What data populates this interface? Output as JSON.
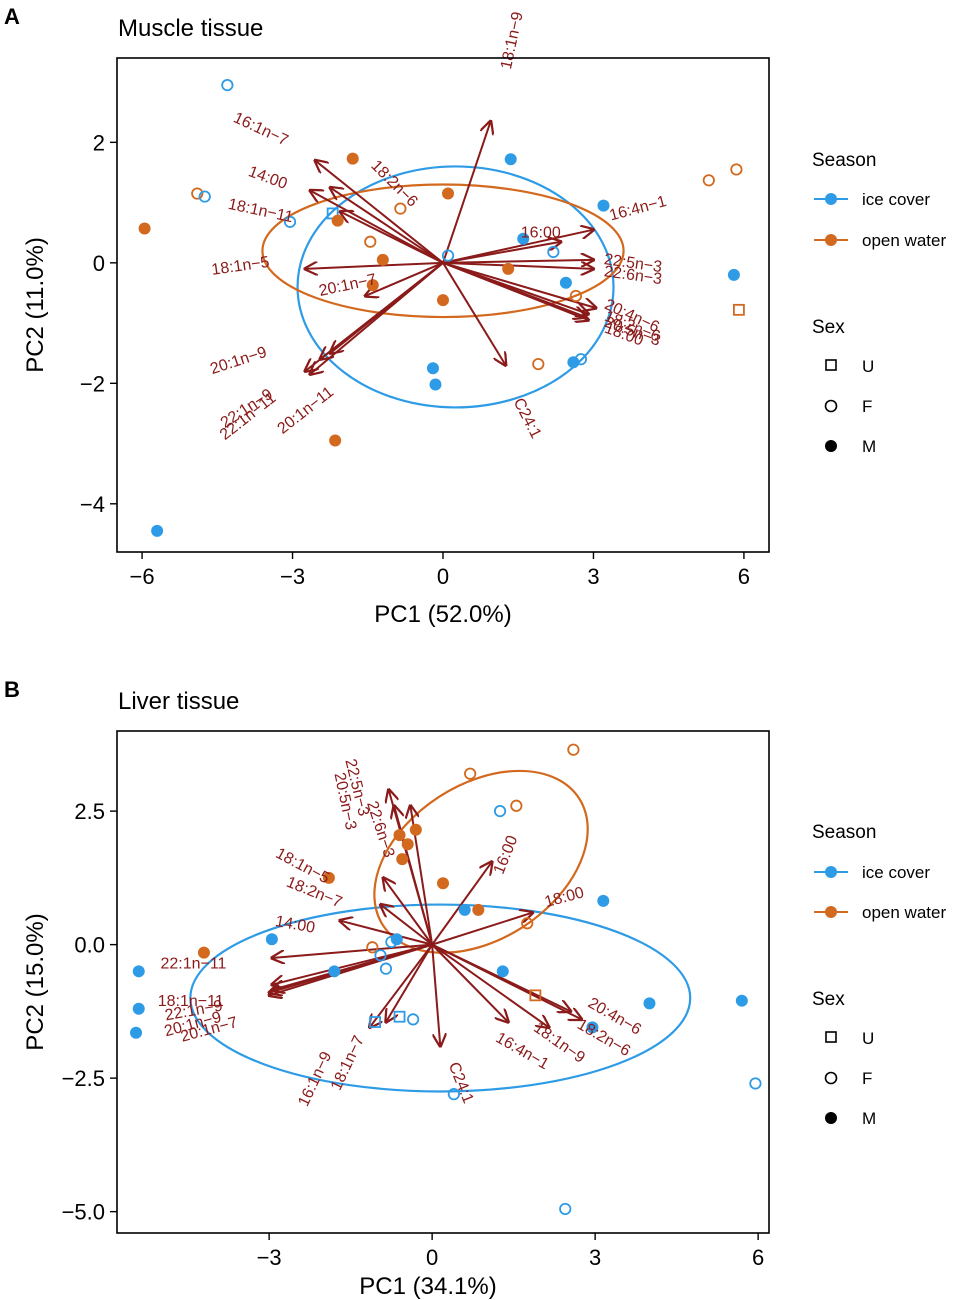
{
  "figure": {
    "panels": [
      {
        "letter": "A",
        "title": "Muscle tissue"
      },
      {
        "letter": "B",
        "title": "Liver tissue"
      }
    ]
  },
  "legend": {
    "season_title": "Season",
    "season_items": [
      {
        "label": "ice cover",
        "color": "#2E9BE6"
      },
      {
        "label": "open water",
        "color": "#D2691E"
      }
    ],
    "sex_title": "Sex",
    "sex_items": [
      {
        "label": "U",
        "shape": "square-open"
      },
      {
        "label": "F",
        "shape": "circle-open"
      },
      {
        "label": "M",
        "shape": "circle-filled"
      }
    ]
  },
  "chart_data": [
    {
      "type": "scatter",
      "title": "Muscle tissue",
      "xlabel": "PC1 (52.0%)",
      "ylabel": "PC2 (11.0%)",
      "xlim": [
        -6.5,
        6.5
      ],
      "ylim": [
        -4.8,
        3.4
      ],
      "xticks": [
        -6,
        -3,
        0,
        3,
        6
      ],
      "xtick_labels": [
        "−6",
        "−3",
        "0",
        "3",
        "6"
      ],
      "yticks": [
        -4,
        -2,
        0,
        2
      ],
      "ytick_labels": [
        "−4",
        "−2",
        "0",
        "2"
      ],
      "grid": false,
      "points": [
        {
          "x": -4.3,
          "y": 2.95,
          "season": "ice cover",
          "sex": "F"
        },
        {
          "x": -4.9,
          "y": 1.15,
          "season": "open water",
          "sex": "F"
        },
        {
          "x": -4.75,
          "y": 1.1,
          "season": "ice cover",
          "sex": "F"
        },
        {
          "x": -5.95,
          "y": 0.57,
          "season": "open water",
          "sex": "M"
        },
        {
          "x": -3.05,
          "y": 0.68,
          "season": "ice cover",
          "sex": "F"
        },
        {
          "x": -2.2,
          "y": 0.82,
          "season": "ice cover",
          "sex": "U"
        },
        {
          "x": -2.1,
          "y": 0.7,
          "season": "open water",
          "sex": "M"
        },
        {
          "x": -1.8,
          "y": 1.73,
          "season": "open water",
          "sex": "M"
        },
        {
          "x": -0.85,
          "y": 0.9,
          "season": "open water",
          "sex": "F"
        },
        {
          "x": 0.1,
          "y": 1.15,
          "season": "open water",
          "sex": "M"
        },
        {
          "x": -1.45,
          "y": 0.35,
          "season": "open water",
          "sex": "F"
        },
        {
          "x": -1.2,
          "y": 0.05,
          "season": "open water",
          "sex": "M"
        },
        {
          "x": -1.4,
          "y": -0.37,
          "season": "open water",
          "sex": "M"
        },
        {
          "x": 0.1,
          "y": 0.12,
          "season": "ice cover",
          "sex": "F"
        },
        {
          "x": 0.0,
          "y": -0.62,
          "season": "open water",
          "sex": "M"
        },
        {
          "x": 1.3,
          "y": -0.1,
          "season": "open water",
          "sex": "M"
        },
        {
          "x": 1.35,
          "y": 1.72,
          "season": "ice cover",
          "sex": "M"
        },
        {
          "x": 1.6,
          "y": 0.4,
          "season": "ice cover",
          "sex": "M"
        },
        {
          "x": 2.2,
          "y": 0.18,
          "season": "ice cover",
          "sex": "F"
        },
        {
          "x": 3.2,
          "y": 0.95,
          "season": "ice cover",
          "sex": "M"
        },
        {
          "x": 2.45,
          "y": -0.33,
          "season": "ice cover",
          "sex": "M"
        },
        {
          "x": 2.65,
          "y": -0.55,
          "season": "open water",
          "sex": "F"
        },
        {
          "x": 1.9,
          "y": -1.68,
          "season": "open water",
          "sex": "F"
        },
        {
          "x": 2.6,
          "y": -1.65,
          "season": "ice cover",
          "sex": "M"
        },
        {
          "x": 2.75,
          "y": -1.6,
          "season": "ice cover",
          "sex": "F"
        },
        {
          "x": -0.2,
          "y": -1.75,
          "season": "ice cover",
          "sex": "M"
        },
        {
          "x": -0.15,
          "y": -2.02,
          "season": "ice cover",
          "sex": "M"
        },
        {
          "x": -2.15,
          "y": -2.95,
          "season": "open water",
          "sex": "M"
        },
        {
          "x": -5.7,
          "y": -4.45,
          "season": "ice cover",
          "sex": "M"
        },
        {
          "x": 5.3,
          "y": 1.37,
          "season": "open water",
          "sex": "F"
        },
        {
          "x": 5.85,
          "y": 1.55,
          "season": "open water",
          "sex": "F"
        },
        {
          "x": 5.8,
          "y": -0.2,
          "season": "ice cover",
          "sex": "M"
        },
        {
          "x": 5.9,
          "y": -0.78,
          "season": "open water",
          "sex": "U"
        }
      ],
      "ellipses": [
        {
          "season": "ice cover",
          "cx": 0.25,
          "cy": -0.4,
          "rx": 3.15,
          "ry": 2.0
        },
        {
          "season": "open water",
          "cx": 0.0,
          "cy": 0.2,
          "rx": 3.6,
          "ry": 1.1
        }
      ],
      "loadings": [
        {
          "label": "18:1n−9",
          "x": 0.95,
          "y": 2.35,
          "lx": 1.35,
          "ly": 3.2,
          "rot": -78
        },
        {
          "label": "16:1n−7",
          "x": -2.55,
          "y": 1.7,
          "lx": -4.2,
          "ly": 2.35,
          "rot": 25
        },
        {
          "label": "14:00",
          "x": -2.65,
          "y": 1.2,
          "lx": -3.9,
          "ly": 1.45,
          "rot": 20
        },
        {
          "label": "18:2n−6",
          "x": -2.25,
          "y": 1.25,
          "lx": -1.45,
          "ly": 1.6,
          "rot": 45
        },
        {
          "label": "18:1n−11",
          "x": -2.05,
          "y": 0.85,
          "lx": -4.3,
          "ly": 0.9,
          "rot": 12
        },
        {
          "label": "18:1n−5",
          "x": -2.75,
          "y": -0.1,
          "lx": -4.6,
          "ly": -0.2,
          "rot": -8
        },
        {
          "label": "20:1n−7",
          "x": -1.55,
          "y": -0.55,
          "lx": -2.45,
          "ly": -0.55,
          "rot": -12
        },
        {
          "label": "20:1n−9",
          "x": -2.75,
          "y": -1.8,
          "lx": -4.6,
          "ly": -1.85,
          "rot": -18
        },
        {
          "label": "22:1n−9",
          "x": -2.65,
          "y": -1.85,
          "lx": -4.35,
          "ly": -2.75,
          "rot": -33
        },
        {
          "label": "22:1n−11",
          "x": -2.45,
          "y": -1.6,
          "lx": -4.35,
          "ly": -2.95,
          "rot": -38
        },
        {
          "label": "20:1n−11",
          "x": -2.25,
          "y": -1.5,
          "lx": -3.2,
          "ly": -2.85,
          "rot": -38
        },
        {
          "label": "C24:1",
          "x": 1.25,
          "y": -1.7,
          "lx": 1.4,
          "ly": -2.3,
          "rot": 63
        },
        {
          "label": "16:00",
          "x": 2.35,
          "y": 0.35,
          "lx": 1.55,
          "ly": 0.42,
          "rot": 0
        },
        {
          "label": "16:4n−1",
          "x": 3.0,
          "y": 0.55,
          "lx": 3.35,
          "ly": 0.7,
          "rot": -15
        },
        {
          "label": "22:5n−3",
          "x": 3.0,
          "y": 0.05,
          "lx": 3.2,
          "ly": -0.02,
          "rot": 8
        },
        {
          "label": "22:6n−3",
          "x": 3.0,
          "y": -0.1,
          "lx": 3.2,
          "ly": -0.22,
          "rot": 8
        },
        {
          "label": "20:4n−6",
          "x": 3.05,
          "y": -0.75,
          "lx": 3.2,
          "ly": -0.75,
          "rot": 25
        },
        {
          "label": "18:2n−6",
          "x": 2.9,
          "y": -0.85,
          "lx": 3.2,
          "ly": -0.95,
          "rot": 22
        },
        {
          "label": "20:5n−3",
          "x": 2.85,
          "y": -0.9,
          "lx": 3.2,
          "ly": -1.05,
          "rot": 20
        },
        {
          "label": "18:00",
          "x": 2.9,
          "y": -0.95,
          "lx": 3.2,
          "ly": -1.15,
          "rot": 20
        }
      ]
    },
    {
      "type": "scatter",
      "title": "Liver tissue",
      "xlabel": "PC1 (34.1%)",
      "ylabel": "PC2 (15.0%)",
      "xlim": [
        -5.8,
        6.2
      ],
      "ylim": [
        -5.4,
        4.0
      ],
      "xticks": [
        -3,
        0,
        3,
        6
      ],
      "xtick_labels": [
        "−3",
        "0",
        "3",
        "6"
      ],
      "yticks": [
        -5.0,
        -2.5,
        0.0,
        2.5
      ],
      "ytick_labels": [
        "−5.0",
        "−2.5",
        "0.0",
        "2.5"
      ],
      "grid": false,
      "points": [
        {
          "x": 2.6,
          "y": 3.65,
          "season": "open water",
          "sex": "F"
        },
        {
          "x": 0.7,
          "y": 3.2,
          "season": "open water",
          "sex": "F"
        },
        {
          "x": 1.55,
          "y": 2.6,
          "season": "open water",
          "sex": "F"
        },
        {
          "x": 1.25,
          "y": 2.5,
          "season": "ice cover",
          "sex": "F"
        },
        {
          "x": -0.3,
          "y": 2.15,
          "season": "open water",
          "sex": "M"
        },
        {
          "x": -0.6,
          "y": 2.05,
          "season": "open water",
          "sex": "M"
        },
        {
          "x": -0.55,
          "y": 1.6,
          "season": "open water",
          "sex": "M"
        },
        {
          "x": -0.45,
          "y": 1.88,
          "season": "open water",
          "sex": "M"
        },
        {
          "x": 0.2,
          "y": 1.15,
          "season": "open water",
          "sex": "M"
        },
        {
          "x": -1.9,
          "y": 1.25,
          "season": "open water",
          "sex": "M"
        },
        {
          "x": 0.6,
          "y": 0.65,
          "season": "ice cover",
          "sex": "M"
        },
        {
          "x": 0.85,
          "y": 0.65,
          "season": "open water",
          "sex": "M"
        },
        {
          "x": 1.75,
          "y": 0.4,
          "season": "open water",
          "sex": "F"
        },
        {
          "x": 3.15,
          "y": 0.82,
          "season": "ice cover",
          "sex": "M"
        },
        {
          "x": -2.95,
          "y": 0.1,
          "season": "ice cover",
          "sex": "M"
        },
        {
          "x": -0.65,
          "y": 0.1,
          "season": "ice cover",
          "sex": "M"
        },
        {
          "x": -0.75,
          "y": 0.05,
          "season": "ice cover",
          "sex": "F"
        },
        {
          "x": -1.1,
          "y": -0.05,
          "season": "open water",
          "sex": "F"
        },
        {
          "x": -0.95,
          "y": -0.2,
          "season": "ice cover",
          "sex": "F"
        },
        {
          "x": -0.85,
          "y": -0.45,
          "season": "ice cover",
          "sex": "F"
        },
        {
          "x": -1.8,
          "y": -0.5,
          "season": "ice cover",
          "sex": "M"
        },
        {
          "x": -4.2,
          "y": -0.15,
          "season": "open water",
          "sex": "M"
        },
        {
          "x": -5.4,
          "y": -0.5,
          "season": "ice cover",
          "sex": "M"
        },
        {
          "x": -5.4,
          "y": -1.2,
          "season": "ice cover",
          "sex": "M"
        },
        {
          "x": -5.45,
          "y": -1.65,
          "season": "ice cover",
          "sex": "M"
        },
        {
          "x": 1.3,
          "y": -0.5,
          "season": "ice cover",
          "sex": "M"
        },
        {
          "x": 1.9,
          "y": -0.95,
          "season": "open water",
          "sex": "U"
        },
        {
          "x": -1.05,
          "y": -1.45,
          "season": "ice cover",
          "sex": "U"
        },
        {
          "x": -0.6,
          "y": -1.35,
          "season": "ice cover",
          "sex": "U"
        },
        {
          "x": -0.35,
          "y": -1.4,
          "season": "ice cover",
          "sex": "F"
        },
        {
          "x": 2.95,
          "y": -1.55,
          "season": "ice cover",
          "sex": "M"
        },
        {
          "x": 0.4,
          "y": -2.8,
          "season": "ice cover",
          "sex": "F"
        },
        {
          "x": 2.45,
          "y": -4.95,
          "season": "ice cover",
          "sex": "F"
        },
        {
          "x": 4.0,
          "y": -1.1,
          "season": "ice cover",
          "sex": "M"
        },
        {
          "x": 5.7,
          "y": -1.05,
          "season": "ice cover",
          "sex": "M"
        },
        {
          "x": 5.95,
          "y": -2.6,
          "season": "ice cover",
          "sex": "F"
        }
      ],
      "ellipses": [
        {
          "season": "ice cover",
          "cx": 0.15,
          "cy": -1.0,
          "rx": 4.6,
          "ry": 1.75
        },
        {
          "season": "open water",
          "cx": 0.9,
          "cy": 1.55,
          "rx": 2.15,
          "ry": 1.45,
          "rot": -33
        }
      ],
      "loadings": [
        {
          "label": "20:5n−3",
          "x": -0.7,
          "y": 2.6,
          "lx": -1.8,
          "ly": 3.2,
          "rot": 78
        },
        {
          "label": "22:5n−3",
          "x": -0.8,
          "y": 2.9,
          "lx": -1.6,
          "ly": 3.45,
          "rot": 76
        },
        {
          "label": "22:6n−3",
          "x": -0.4,
          "y": 2.6,
          "lx": -1.2,
          "ly": 2.65,
          "rot": 72
        },
        {
          "label": "18:1n−5",
          "x": -0.9,
          "y": 1.25,
          "lx": -2.9,
          "ly": 1.65,
          "rot": 28
        },
        {
          "label": "18:2n−7",
          "x": -0.95,
          "y": 0.75,
          "lx": -2.7,
          "ly": 1.1,
          "rot": 22
        },
        {
          "label": "14:00",
          "x": -1.7,
          "y": 0.45,
          "lx": -2.9,
          "ly": 0.35,
          "rot": 10
        },
        {
          "label": "16:00",
          "x": 1.1,
          "y": 1.55,
          "lx": 1.3,
          "ly": 1.3,
          "rot": -68
        },
        {
          "label": "18:00",
          "x": 1.85,
          "y": 0.6,
          "lx": 2.1,
          "ly": 0.7,
          "rot": -15
        },
        {
          "label": "22:1n−11",
          "x": -2.95,
          "y": -0.25,
          "lx": -5.0,
          "ly": -0.45,
          "rot": 0
        },
        {
          "label": "18:1n−11",
          "x": -2.95,
          "y": -0.75,
          "lx": -5.05,
          "ly": -1.15,
          "rot": 0
        },
        {
          "label": "22:1n−9",
          "x": -2.95,
          "y": -0.85,
          "lx": -4.9,
          "ly": -1.42,
          "rot": -10
        },
        {
          "label": "20:1n−9",
          "x": -3.0,
          "y": -0.9,
          "lx": -4.9,
          "ly": -1.72,
          "rot": -15
        },
        {
          "label": "20:1n−7",
          "x": -3.0,
          "y": -0.95,
          "lx": -4.6,
          "ly": -1.82,
          "rot": -15
        },
        {
          "label": "16:1n−9",
          "x": -1.15,
          "y": -1.55,
          "lx": -2.3,
          "ly": -3.05,
          "rot": -65
        },
        {
          "label": "18:1n−7",
          "x": -0.85,
          "y": -1.45,
          "lx": -1.7,
          "ly": -2.75,
          "rot": -65
        },
        {
          "label": "C24:1",
          "x": 0.15,
          "y": -1.9,
          "lx": 0.3,
          "ly": -2.25,
          "rot": 68
        },
        {
          "label": "16:4n−1",
          "x": 1.4,
          "y": -1.45,
          "lx": 1.15,
          "ly": -1.8,
          "rot": 30
        },
        {
          "label": "18:1n−9",
          "x": 2.15,
          "y": -1.55,
          "lx": 1.85,
          "ly": -1.6,
          "rot": 35
        },
        {
          "label": "18:2n−6",
          "x": 2.75,
          "y": -1.4,
          "lx": 2.65,
          "ly": -1.55,
          "rot": 30
        },
        {
          "label": "20:4n−6",
          "x": 2.55,
          "y": -1.25,
          "lx": 2.85,
          "ly": -1.15,
          "rot": 30
        }
      ]
    }
  ]
}
